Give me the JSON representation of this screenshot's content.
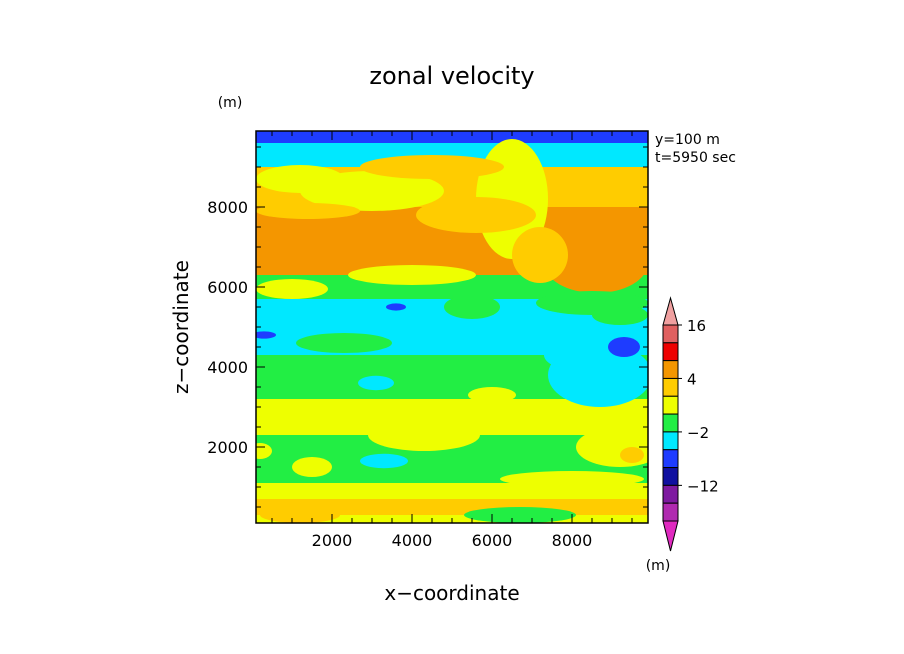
{
  "chart_data": {
    "type": "heatmap",
    "title": "zonal velocity",
    "xlabel": "x−coordinate",
    "ylabel": "z−coordinate",
    "x_unit": "(m)",
    "y_unit": "(m)",
    "annotations": [
      "y=100 m",
      "t=5950 sec"
    ],
    "xlim": [
      100,
      9900
    ],
    "ylim": [
      100,
      9900
    ],
    "x_ticks": [
      2000,
      4000,
      6000,
      8000
    ],
    "y_ticks": [
      2000,
      4000,
      6000,
      8000
    ],
    "x_tick_labels": [
      "2000",
      "4000",
      "6000",
      "8000"
    ],
    "y_tick_labels": [
      "2000",
      "4000",
      "6000",
      "8000"
    ],
    "colorbar": {
      "labels": [
        {
          "level": 16,
          "text": "16"
        },
        {
          "level": 4,
          "text": "4"
        },
        {
          "level": -2,
          "text": "−2"
        },
        {
          "level": -12,
          "text": "−12"
        }
      ],
      "bins": [
        {
          "range": "> 16",
          "color": "#F0A0A0"
        },
        {
          "range": "12 to 16",
          "color": "#E06060"
        },
        {
          "range": "8 to 12",
          "color": "#EE0000"
        },
        {
          "range": "4 to 8",
          "color": "#F49600"
        },
        {
          "range": "2 to 4",
          "color": "#FFCC00"
        },
        {
          "range": "0 to 2",
          "color": "#EEFF00"
        },
        {
          "range": "-2 to 0",
          "color": "#22EE44"
        },
        {
          "range": "-4 to -2",
          "color": "#00E8FF"
        },
        {
          "range": "-8 to -4",
          "color": "#1E3CFF"
        },
        {
          "range": "-12 to -8",
          "color": "#1010A0"
        },
        {
          "range": "-16 to -12",
          "color": "#7E1AA0"
        },
        {
          "range": "-20 to -16",
          "color": "#B02AB0"
        },
        {
          "range": "< -20",
          "color": "#E02AC0"
        }
      ]
    },
    "bands": [
      {
        "z": [
          100,
          300
        ],
        "value": 1
      },
      {
        "z": [
          300,
          700
        ],
        "value": 3
      },
      {
        "z": [
          700,
          1100
        ],
        "value": 1
      },
      {
        "z": [
          1100,
          2300
        ],
        "value": -1
      },
      {
        "z": [
          2300,
          3200
        ],
        "value": 1
      },
      {
        "z": [
          3200,
          4300
        ],
        "value": -1
      },
      {
        "z": [
          4300,
          5700
        ],
        "value": -3
      },
      {
        "z": [
          5700,
          6300
        ],
        "value": -1
      },
      {
        "z": [
          6300,
          8000
        ],
        "value": 5
      },
      {
        "z": [
          8000,
          9000
        ],
        "value": 3
      },
      {
        "z": [
          9000,
          9600
        ],
        "value": -3
      },
      {
        "z": [
          9600,
          9900
        ],
        "value": -6
      }
    ],
    "patches": [
      {
        "x": 6500,
        "z": 8200,
        "rx": 900,
        "rz": 1500,
        "value": 1
      },
      {
        "x": 3000,
        "z": 8400,
        "rx": 1800,
        "rz": 500,
        "value": 1
      },
      {
        "x": 4500,
        "z": 9000,
        "rx": 1800,
        "rz": 300,
        "value": 3
      },
      {
        "x": 1200,
        "z": 8700,
        "rx": 1100,
        "rz": 350,
        "value": 1
      },
      {
        "x": 5600,
        "z": 7800,
        "rx": 1500,
        "rz": 450,
        "value": 3
      },
      {
        "x": 1400,
        "z": 7900,
        "rx": 1300,
        "rz": 200,
        "value": 3
      },
      {
        "x": 8600,
        "z": 6600,
        "rx": 1300,
        "rz": 750,
        "value": 5
      },
      {
        "x": 7200,
        "z": 6800,
        "rx": 700,
        "rz": 700,
        "value": 3
      },
      {
        "x": 4000,
        "z": 6300,
        "rx": 1600,
        "rz": 250,
        "value": 1
      },
      {
        "x": 1000,
        "z": 5950,
        "rx": 900,
        "rz": 250,
        "value": 1
      },
      {
        "x": 8500,
        "z": 5600,
        "rx": 1400,
        "rz": 300,
        "value": -1
      },
      {
        "x": 5500,
        "z": 5500,
        "rx": 700,
        "rz": 300,
        "value": -1
      },
      {
        "x": 2300,
        "z": 4600,
        "rx": 1200,
        "rz": 250,
        "value": -1
      },
      {
        "x": 8700,
        "z": 3800,
        "rx": 1300,
        "rz": 800,
        "value": -3
      },
      {
        "x": 8000,
        "z": 4300,
        "rx": 700,
        "rz": 350,
        "value": -3
      },
      {
        "x": 3100,
        "z": 3600,
        "rx": 450,
        "rz": 180,
        "value": -3
      },
      {
        "x": 9200,
        "z": 5300,
        "rx": 700,
        "rz": 250,
        "value": -1
      },
      {
        "x": 9300,
        "z": 4500,
        "rx": 400,
        "rz": 250,
        "value": -6
      },
      {
        "x": 3600,
        "z": 5500,
        "rx": 250,
        "rz": 90,
        "value": -6
      },
      {
        "x": 300,
        "z": 4800,
        "rx": 300,
        "rz": 90,
        "value": -6
      },
      {
        "x": 4300,
        "z": 2300,
        "rx": 1400,
        "rz": 400,
        "value": 1
      },
      {
        "x": 9200,
        "z": 2000,
        "rx": 1100,
        "rz": 500,
        "value": 1
      },
      {
        "x": 6000,
        "z": 3300,
        "rx": 600,
        "rz": 200,
        "value": 1
      },
      {
        "x": 3300,
        "z": 1650,
        "rx": 600,
        "rz": 180,
        "value": -3
      },
      {
        "x": 8000,
        "z": 1200,
        "rx": 1800,
        "rz": 200,
        "value": 1
      },
      {
        "x": 9500,
        "z": 1800,
        "rx": 300,
        "rz": 200,
        "value": 3
      },
      {
        "x": 4500,
        "z": 950,
        "rx": 2500,
        "rz": 150,
        "value": 1
      },
      {
        "x": 1500,
        "z": 1500,
        "rx": 500,
        "rz": 250,
        "value": 1
      },
      {
        "x": 200,
        "z": 1900,
        "rx": 300,
        "rz": 200,
        "value": 1
      },
      {
        "x": 1200,
        "z": 300,
        "rx": 1000,
        "rz": 200,
        "value": 3
      },
      {
        "x": 6700,
        "z": 300,
        "rx": 1400,
        "rz": 200,
        "value": -1
      }
    ]
  }
}
